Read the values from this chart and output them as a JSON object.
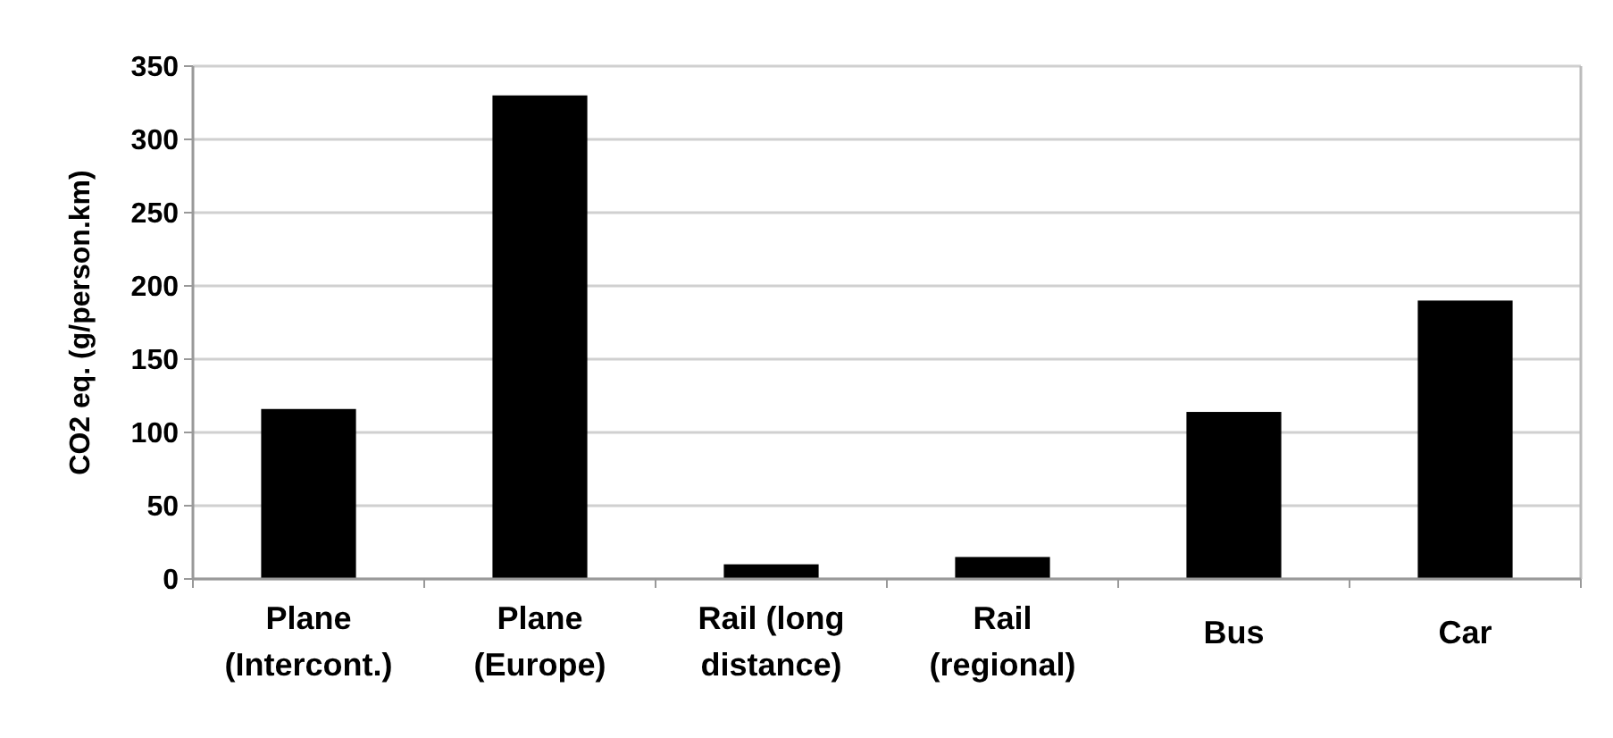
{
  "chart_data": {
    "type": "bar",
    "ylabel": "CO2 eq. (g/person.km)",
    "categories": [
      "Plane\n(Intercont.)",
      "Plane\n(Europe)",
      "Rail (long\ndistance)",
      "Rail\n(regional)",
      "Bus",
      "Car"
    ],
    "values": [
      116,
      330,
      10,
      15,
      114,
      190
    ],
    "color": "#000000",
    "ylim": [
      0,
      350
    ],
    "yticks": [
      0,
      50,
      100,
      150,
      200,
      250,
      300,
      350
    ],
    "grid": "y"
  }
}
